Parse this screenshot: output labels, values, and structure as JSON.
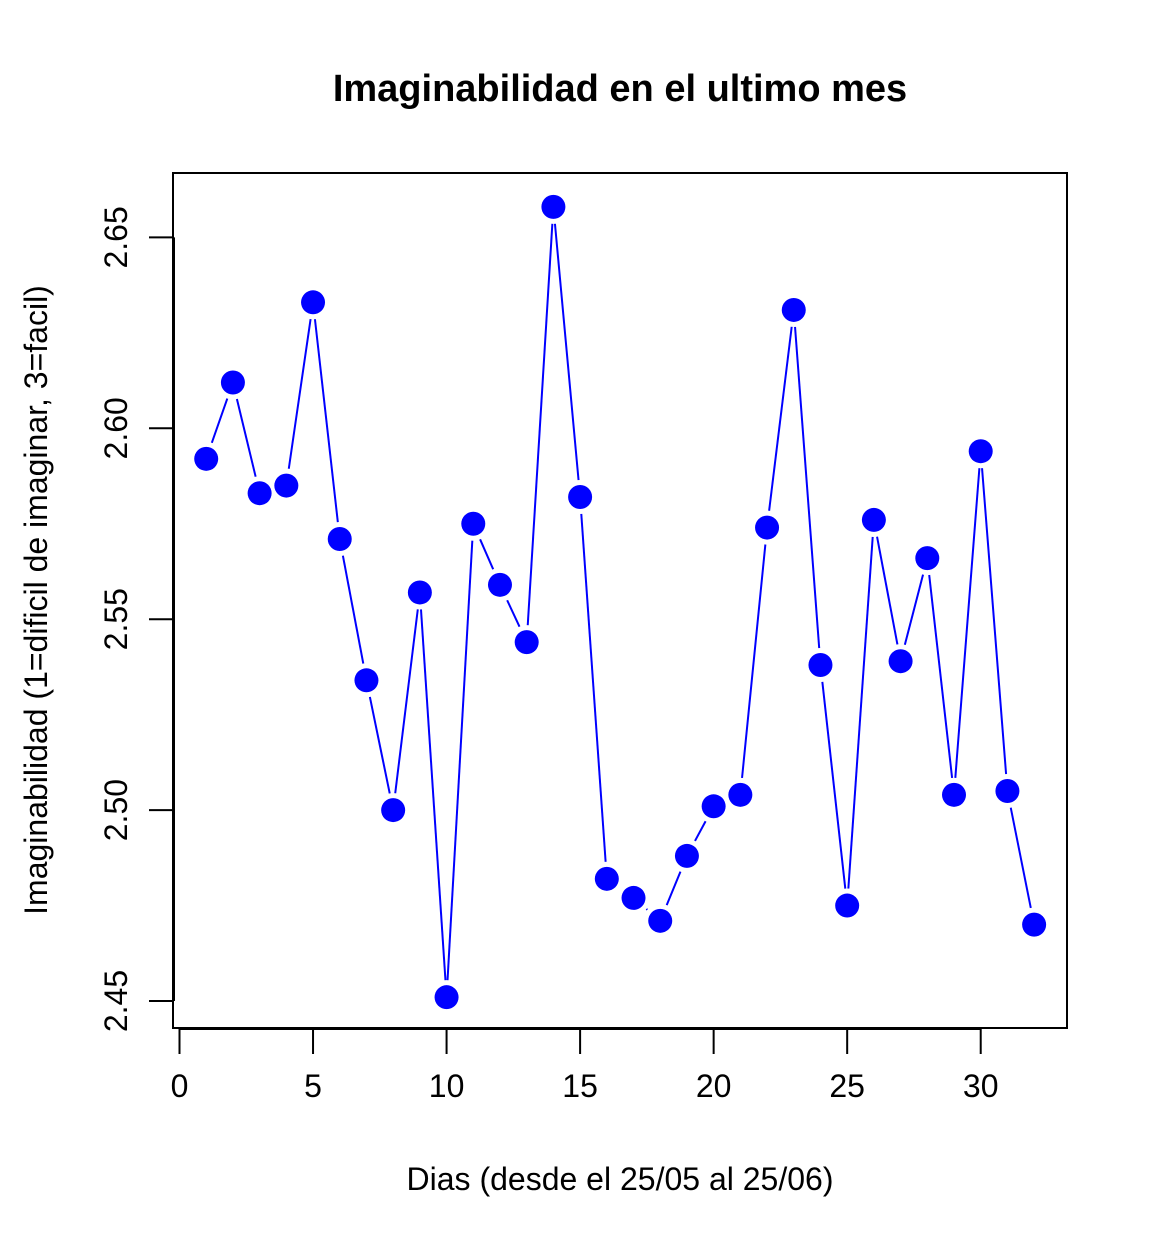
{
  "chart_data": {
    "type": "line",
    "title": "Imaginabilidad en el ultimo mes",
    "xlabel": "Dias (desde el 25/05 al 25/06)",
    "ylabel": "Imaginabilidad (1=dificil de imaginar, 3=facil)",
    "xlim": [
      0,
      33
    ],
    "ylim": [
      2.445,
      2.667
    ],
    "x_ticks": [
      0,
      5,
      10,
      15,
      20,
      25,
      30
    ],
    "y_ticks": [
      2.45,
      2.5,
      2.55,
      2.6,
      2.65
    ],
    "x_tick_labels": [
      "0",
      "5",
      "10",
      "15",
      "20",
      "25",
      "30"
    ],
    "y_tick_labels": [
      "2.45",
      "2.50",
      "2.55",
      "2.60",
      "2.65"
    ],
    "grid": false,
    "series": [
      {
        "color": "#0000ff",
        "marker": "filled-circle",
        "x": [
          1,
          2,
          3,
          4,
          5,
          6,
          7,
          8,
          9,
          10,
          11,
          12,
          13,
          14,
          15,
          16,
          17,
          18,
          19,
          20,
          21,
          22,
          23,
          24,
          25,
          26,
          27,
          28,
          29,
          30,
          31,
          32
        ],
        "y": [
          2.592,
          2.612,
          2.583,
          2.585,
          2.633,
          2.571,
          2.534,
          2.5,
          2.557,
          2.451,
          2.575,
          2.559,
          2.544,
          2.658,
          2.582,
          2.482,
          2.477,
          2.471,
          2.488,
          2.501,
          2.504,
          2.574,
          2.631,
          2.538,
          2.475,
          2.576,
          2.539,
          2.566,
          2.504,
          2.594,
          2.505,
          2.47
        ]
      }
    ]
  }
}
